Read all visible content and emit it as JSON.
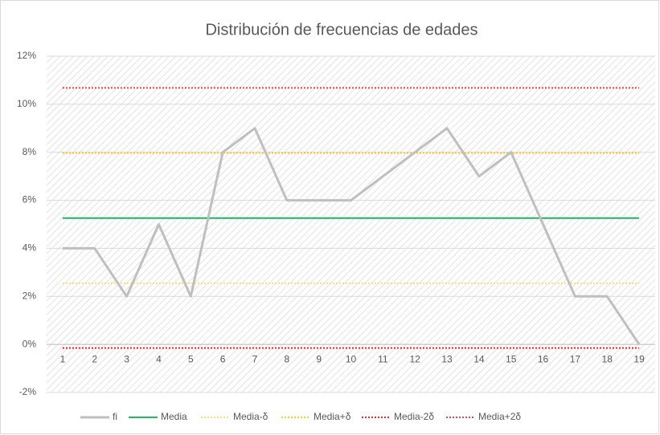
{
  "chart_data": {
    "type": "line",
    "title": "Distribución de frecuencias de edades",
    "categories": [
      1,
      2,
      3,
      4,
      5,
      6,
      7,
      8,
      9,
      10,
      11,
      12,
      13,
      14,
      15,
      16,
      17,
      18,
      19
    ],
    "series": [
      {
        "name": "fi",
        "color": "#bfbfbf",
        "dash": "solid",
        "values": [
          4,
          4,
          2,
          5,
          2,
          8,
          9,
          6,
          6,
          6,
          7,
          8,
          9,
          7,
          8,
          5,
          2,
          2,
          0
        ]
      },
      {
        "name": "Media",
        "color": "#00b050",
        "dash": "solid",
        "values": [
          5.26,
          5.26,
          5.26,
          5.26,
          5.26,
          5.26,
          5.26,
          5.26,
          5.26,
          5.26,
          5.26,
          5.26,
          5.26,
          5.26,
          5.26,
          5.26,
          5.26,
          5.26,
          5.26
        ]
      },
      {
        "name": "Media-δ",
        "color": "#ffd966",
        "dash": "dotted",
        "values": [
          2.55,
          2.55,
          2.55,
          2.55,
          2.55,
          2.55,
          2.55,
          2.55,
          2.55,
          2.55,
          2.55,
          2.55,
          2.55,
          2.55,
          2.55,
          2.55,
          2.55,
          2.55,
          2.55
        ]
      },
      {
        "name": "Media+δ",
        "color": "#ffc000",
        "dash": "dotted",
        "values": [
          7.97,
          7.97,
          7.97,
          7.97,
          7.97,
          7.97,
          7.97,
          7.97,
          7.97,
          7.97,
          7.97,
          7.97,
          7.97,
          7.97,
          7.97,
          7.97,
          7.97,
          7.97,
          7.97
        ]
      },
      {
        "name": "Media-2δ",
        "color": "#ff0000",
        "dash": "dotted",
        "values": [
          -0.15,
          -0.15,
          -0.15,
          -0.15,
          -0.15,
          -0.15,
          -0.15,
          -0.15,
          -0.15,
          -0.15,
          -0.15,
          -0.15,
          -0.15,
          -0.15,
          -0.15,
          -0.15,
          -0.15,
          -0.15,
          -0.15
        ]
      },
      {
        "name": "Media+2δ",
        "color": "#e8262b",
        "dash": "dotted",
        "values": [
          10.68,
          10.68,
          10.68,
          10.68,
          10.68,
          10.68,
          10.68,
          10.68,
          10.68,
          10.68,
          10.68,
          10.68,
          10.68,
          10.68,
          10.68,
          10.68,
          10.68,
          10.68,
          10.68
        ]
      }
    ],
    "ylim": [
      -2,
      12
    ],
    "yticks": [
      {
        "value": -2,
        "label": "-2%"
      },
      {
        "value": 0,
        "label": "0%"
      },
      {
        "value": 2,
        "label": "2%"
      },
      {
        "value": 4,
        "label": "4%"
      },
      {
        "value": 6,
        "label": "6%"
      },
      {
        "value": 8,
        "label": "8%"
      },
      {
        "value": 10,
        "label": "10%"
      },
      {
        "value": 12,
        "label": "12%"
      }
    ],
    "grid": true,
    "legend": "bottom"
  }
}
